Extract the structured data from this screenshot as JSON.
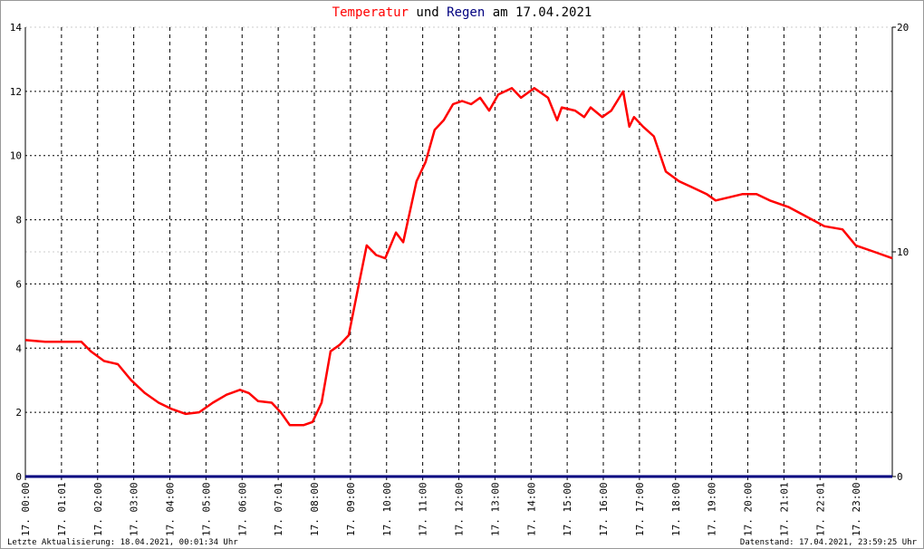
{
  "chart_data": {
    "type": "line",
    "title_connector": "und",
    "title_suffix": "am 17.04.2021",
    "xlim": [
      0,
      24
    ],
    "xticks": [
      {
        "value": 0,
        "label": "17. 00:00"
      },
      {
        "value": 1,
        "label": "17. 01:01"
      },
      {
        "value": 2,
        "label": "17. 02:00"
      },
      {
        "value": 3,
        "label": "17. 03:00"
      },
      {
        "value": 4,
        "label": "17. 04:00"
      },
      {
        "value": 5,
        "label": "17. 05:00"
      },
      {
        "value": 6,
        "label": "17. 06:00"
      },
      {
        "value": 7,
        "label": "17. 07:01"
      },
      {
        "value": 8,
        "label": "17. 08:00"
      },
      {
        "value": 9,
        "label": "17. 09:00"
      },
      {
        "value": 10,
        "label": "17. 10:00"
      },
      {
        "value": 11,
        "label": "17. 11:00"
      },
      {
        "value": 12,
        "label": "17. 12:00"
      },
      {
        "value": 13,
        "label": "17. 13:00"
      },
      {
        "value": 14,
        "label": "17. 14:00"
      },
      {
        "value": 15,
        "label": "17. 15:00"
      },
      {
        "value": 16,
        "label": "17. 16:00"
      },
      {
        "value": 17,
        "label": "17. 17:00"
      },
      {
        "value": 18,
        "label": "17. 18:00"
      },
      {
        "value": 19,
        "label": "17. 19:00"
      },
      {
        "value": 20,
        "label": "17. 20:00"
      },
      {
        "value": 21,
        "label": "17. 21:01"
      },
      {
        "value": 22,
        "label": "17. 22:01"
      },
      {
        "value": 23,
        "label": "17. 23:00"
      }
    ],
    "ylim": [
      0,
      14
    ],
    "yticks": [
      0,
      2,
      4,
      6,
      8,
      10,
      12,
      14
    ],
    "y2lim": [
      0,
      20
    ],
    "y2ticks": [
      0,
      10,
      20
    ],
    "grid": true,
    "series": [
      {
        "name": "Temperatur",
        "color": "#ff0000",
        "axis": "y",
        "x": [
          0,
          0.55,
          1.55,
          1.81,
          2.18,
          2.56,
          2.93,
          3.31,
          3.69,
          4.06,
          4.44,
          4.81,
          5.19,
          5.57,
          5.94,
          6.19,
          6.44,
          6.82,
          7.07,
          7.32,
          7.7,
          7.95,
          8.2,
          8.45,
          8.7,
          8.95,
          9.2,
          9.45,
          9.71,
          9.96,
          10.26,
          10.46,
          10.83,
          11.08,
          11.33,
          11.58,
          11.84,
          12.09,
          12.34,
          12.59,
          12.84,
          13.09,
          13.47,
          13.72,
          14.09,
          14.47,
          14.72,
          14.85,
          15.22,
          15.47,
          15.65,
          15.97,
          16.22,
          16.55,
          16.72,
          16.85,
          17.1,
          17.4,
          17.73,
          18.1,
          18.48,
          18.86,
          19.11,
          19.48,
          19.86,
          20.24,
          20.61,
          21.12,
          21.62,
          22.12,
          22.62,
          22.99,
          23.5,
          24
        ],
        "values": [
          4.25,
          4.2,
          4.2,
          3.9,
          3.6,
          3.5,
          3.0,
          2.6,
          2.3,
          2.1,
          1.95,
          2.0,
          2.3,
          2.55,
          2.7,
          2.6,
          2.35,
          2.3,
          2.0,
          1.6,
          1.6,
          1.7,
          2.3,
          3.9,
          4.1,
          4.4,
          5.8,
          7.2,
          6.9,
          6.8,
          7.6,
          7.3,
          9.2,
          9.8,
          10.8,
          11.1,
          11.6,
          11.7,
          11.6,
          11.8,
          11.4,
          11.9,
          12.1,
          11.8,
          12.1,
          11.8,
          11.1,
          11.5,
          11.4,
          11.2,
          11.5,
          11.2,
          11.4,
          12.0,
          10.9,
          11.2,
          10.9,
          10.6,
          9.5,
          9.2,
          9.0,
          8.8,
          8.6,
          8.7,
          8.8,
          8.8,
          8.6,
          8.4,
          8.1,
          7.8,
          7.7,
          7.2,
          7.0,
          6.8
        ]
      },
      {
        "name": "Regen",
        "color": "#000080",
        "axis": "y2",
        "x": [
          0,
          24
        ],
        "values": [
          0,
          0
        ]
      }
    ],
    "footer_left": "Letzte Aktualisierung: 18.04.2021, 00:01:34 Uhr",
    "footer_right": "Datenstand: 17.04.2021, 23:59:25 Uhr"
  }
}
